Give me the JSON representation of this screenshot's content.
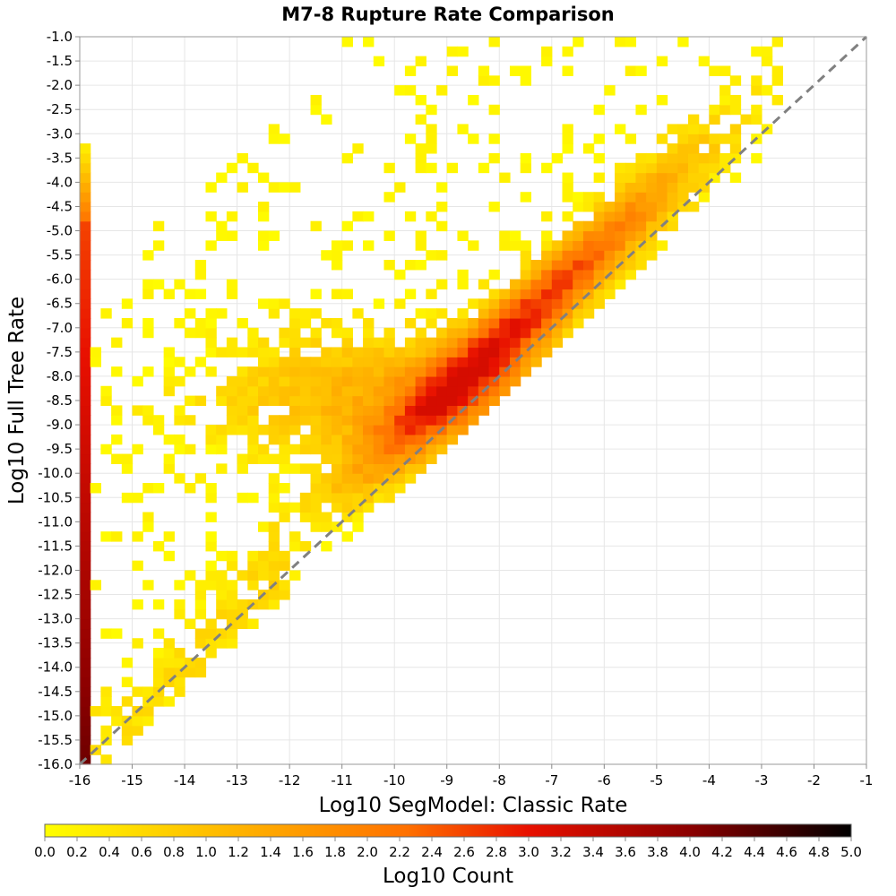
{
  "chart_data": {
    "type": "heatmap",
    "title": "M7-8 Rupture Rate Comparison",
    "xlabel": "Log10 SegModel: Classic Rate",
    "ylabel": "Log10 Full Tree Rate",
    "xlim": [
      -16,
      -1
    ],
    "ylim": [
      -16,
      -1
    ],
    "x_ticks": [
      "-16",
      "-15",
      "-14",
      "-13",
      "-12",
      "-11",
      "-10",
      "-9",
      "-8",
      "-7",
      "-6",
      "-5",
      "-4",
      "-3",
      "-2",
      "-1"
    ],
    "y_ticks": [
      "-1.0",
      "-1.5",
      "-2.0",
      "-2.5",
      "-3.0",
      "-3.5",
      "-4.0",
      "-4.5",
      "-5.0",
      "-5.5",
      "-6.0",
      "-6.5",
      "-7.0",
      "-7.5",
      "-8.0",
      "-8.5",
      "-9.0",
      "-9.5",
      "-10.0",
      "-10.5",
      "-11.0",
      "-11.5",
      "-12.0",
      "-12.5",
      "-13.0",
      "-13.5",
      "-14.0",
      "-14.5",
      "-15.0",
      "-15.5",
      "-16.0"
    ],
    "cell_size": 0.2,
    "diagonal": "y = x (dashed gray)",
    "colorbar": {
      "label": "Log10 Count",
      "range": [
        0,
        5
      ],
      "ticks": [
        "0.0",
        "0.2",
        "0.4",
        "0.6",
        "0.8",
        "1.0",
        "1.2",
        "1.4",
        "1.6",
        "1.8",
        "2.0",
        "2.2",
        "2.4",
        "2.6",
        "2.8",
        "3.0",
        "3.2",
        "3.4",
        "3.6",
        "3.8",
        "4.0",
        "4.2",
        "4.4",
        "4.6",
        "4.8",
        "5.0"
      ],
      "colors": [
        "#ffff00",
        "#ff8c00",
        "#e81000",
        "#8b0000",
        "#000000"
      ]
    },
    "description": "Counts concentrated near and above the 1:1 line; dense ridge from x=-10 to x=-4 just above diagonal; strong left-edge column at x=-16 spanning y=-16 to y=-3.2"
  }
}
